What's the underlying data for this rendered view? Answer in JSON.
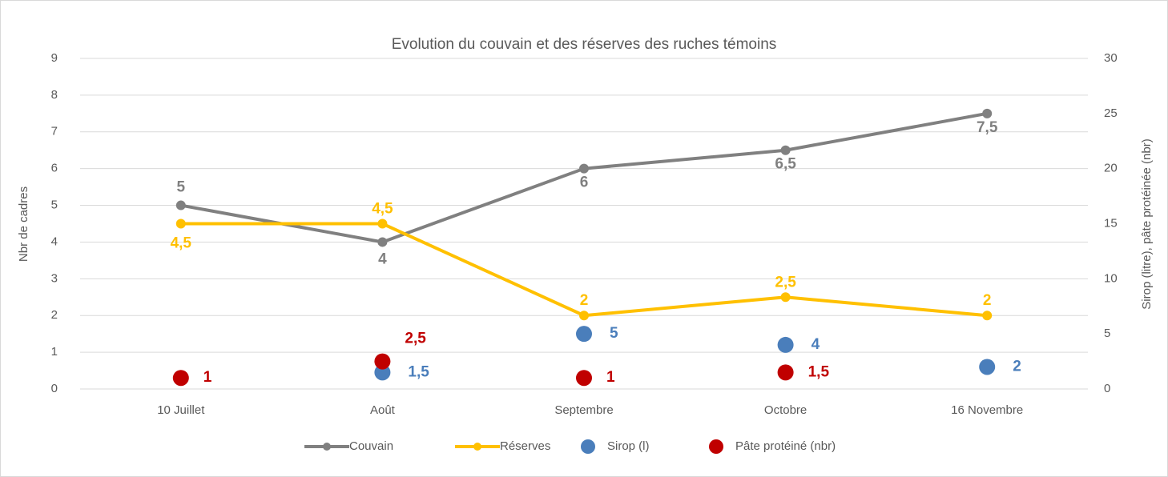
{
  "chart_data": {
    "type": "line",
    "title": "Evolution du couvain et des réserves des ruches témoins",
    "ylabel": "Nbr de cadres",
    "y2label": "Sirop (litre), pâte protéinée (nbr)",
    "categories": [
      "10 Juillet",
      "Août",
      "Septembre",
      "Octobre",
      "16 Novembre"
    ],
    "ylim": [
      0,
      9
    ],
    "yticks": [
      0,
      1,
      2,
      3,
      4,
      5,
      6,
      7,
      8,
      9
    ],
    "y2lim": [
      0,
      30
    ],
    "y2ticks": [
      0,
      5,
      10,
      15,
      20,
      25,
      30
    ],
    "grid": true,
    "legend": "bottom",
    "series": [
      {
        "name": "Couvain",
        "color": "#808080",
        "kind": "line",
        "values": [
          5,
          4,
          6,
          6.5,
          7.5
        ],
        "value_labels": [
          "5",
          "4",
          "6",
          "6,5",
          "7,5"
        ]
      },
      {
        "name": "Réserves",
        "color": "#ffc000",
        "kind": "line",
        "values": [
          4.5,
          4.5,
          2,
          2.5,
          2
        ],
        "value_labels": [
          "4,5",
          "4,5",
          "2",
          "2,5",
          "2"
        ]
      },
      {
        "name": "Sirop (l)",
        "color": "#4a7ebb",
        "kind": "scatter",
        "axis": "y2",
        "values": [
          null,
          1.5,
          5,
          4,
          2
        ],
        "value_labels": [
          null,
          "1,5",
          "5",
          "4",
          "2"
        ]
      },
      {
        "name": "Pâte protéiné (nbr)",
        "color": "#c00000",
        "kind": "scatter",
        "axis": "y2",
        "values": [
          1,
          2.5,
          1,
          1.5,
          null
        ],
        "value_labels": [
          "1",
          "2,5",
          "1",
          "1,5",
          null
        ]
      }
    ]
  }
}
